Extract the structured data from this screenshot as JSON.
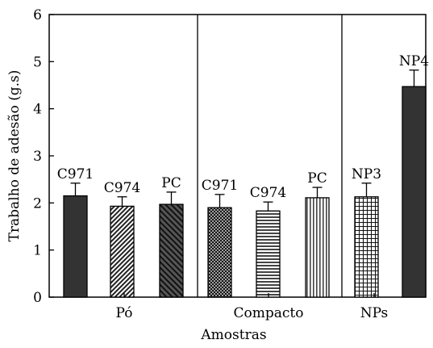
{
  "chart_data": {
    "type": "bar",
    "title": "",
    "xlabel": "Amostras",
    "ylabel": "Trabalho de adesão (g.s)",
    "ylim": [
      0,
      6
    ],
    "yticks": [
      "0",
      "1",
      "2",
      "3",
      "4",
      "5",
      "6"
    ],
    "grid": false,
    "groups": [
      {
        "label": "Pó",
        "bars": [
          {
            "label": "C971",
            "value": 2.15,
            "error": 0.27,
            "pattern": "solid-dark"
          },
          {
            "label": "C974",
            "value": 1.93,
            "error": 0.2,
            "pattern": "diagonal-fine"
          },
          {
            "label": "PC",
            "value": 1.97,
            "error": 0.26,
            "pattern": "diagonal-wide"
          }
        ]
      },
      {
        "label": "Compacto",
        "bars": [
          {
            "label": "C971",
            "value": 1.9,
            "error": 0.28,
            "pattern": "crosshatch-diagonal"
          },
          {
            "label": "C974",
            "value": 1.83,
            "error": 0.19,
            "pattern": "horizontal-lines"
          },
          {
            "label": "PC",
            "value": 2.11,
            "error": 0.22,
            "pattern": "vertical-lines"
          }
        ]
      },
      {
        "label": "NPs",
        "bars": [
          {
            "label": "NP3",
            "value": 2.13,
            "error": 0.29,
            "pattern": "grid"
          },
          {
            "label": "NP4",
            "value": 4.47,
            "error": 0.35,
            "pattern": "solid-dark"
          }
        ]
      }
    ],
    "colors": {
      "bar_dark": "#333333",
      "axis": "#000000",
      "background": "#ffffff"
    }
  }
}
